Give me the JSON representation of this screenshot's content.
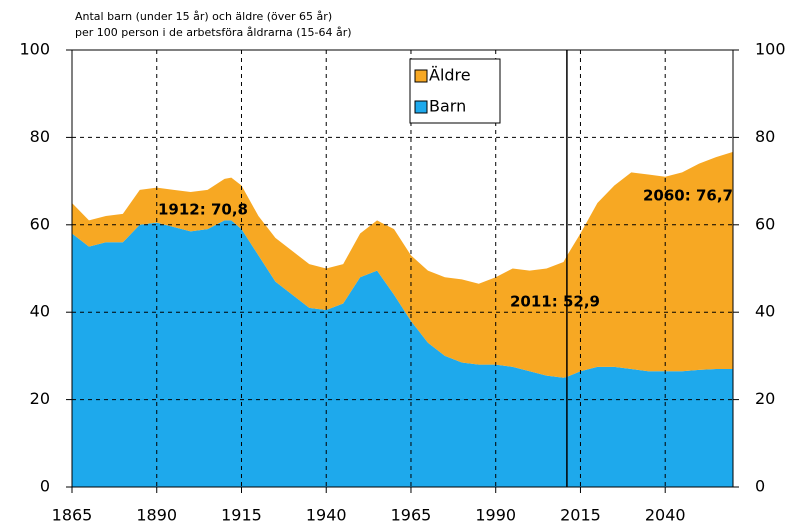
{
  "chart_data": {
    "type": "stacked_area",
    "title": [
      "Antal barn (under 15 år) och äldre (över 65 år)",
      "per 100 person i de arbetsföra åldrarna (15-64 år)"
    ],
    "x": [
      1865,
      1870,
      1875,
      1880,
      1885,
      1890,
      1895,
      1900,
      1905,
      1910,
      1912,
      1915,
      1920,
      1925,
      1930,
      1935,
      1940,
      1945,
      1950,
      1955,
      1960,
      1965,
      1970,
      1975,
      1980,
      1985,
      1990,
      1995,
      2000,
      2005,
      2010,
      2011,
      2015,
      2020,
      2025,
      2030,
      2035,
      2040,
      2045,
      2050,
      2055,
      2060
    ],
    "series": [
      {
        "name": "Barn",
        "color": "#1ea9ec",
        "values": [
          58,
          55,
          56,
          56,
          60,
          60.5,
          59.5,
          58.5,
          59,
          61,
          61,
          59,
          53,
          47,
          44,
          41,
          40.5,
          42,
          48,
          49.5,
          44,
          38,
          33,
          30,
          28.5,
          28,
          28,
          27.5,
          26.5,
          25.5,
          25,
          25.2,
          26.5,
          27.5,
          27.5,
          27,
          26.5,
          26.5,
          26.5,
          26.8,
          27,
          27
        ]
      },
      {
        "name": "Äldre",
        "color": "#f7a823",
        "values": [
          7,
          6,
          6,
          6.5,
          8,
          8,
          8.5,
          9,
          9,
          9.5,
          9.8,
          10,
          9,
          10,
          10,
          10,
          9.5,
          9,
          10,
          11.5,
          15,
          15,
          16.5,
          18,
          19,
          18.5,
          20,
          22.5,
          23,
          24.5,
          26.5,
          27.7,
          31.5,
          37.5,
          41.5,
          45,
          45,
          44.5,
          45.5,
          47.2,
          48.5,
          49.7
        ]
      }
    ],
    "annotations": [
      "1912: 70,8",
      "2011: 52,9",
      "2060: 76,7"
    ],
    "vline": 2011,
    "xlim": [
      1865,
      2060
    ],
    "xticks": [
      1865,
      1890,
      1915,
      1940,
      1965,
      1990,
      2015,
      2040
    ],
    "ylim": [
      0,
      100
    ],
    "yticks": [
      0,
      20,
      40,
      60,
      80,
      100
    ],
    "y2lim": [
      0,
      100
    ],
    "y2ticks": [
      0,
      20,
      40,
      60,
      80,
      100
    ],
    "grid": true,
    "legend": "top-center"
  }
}
